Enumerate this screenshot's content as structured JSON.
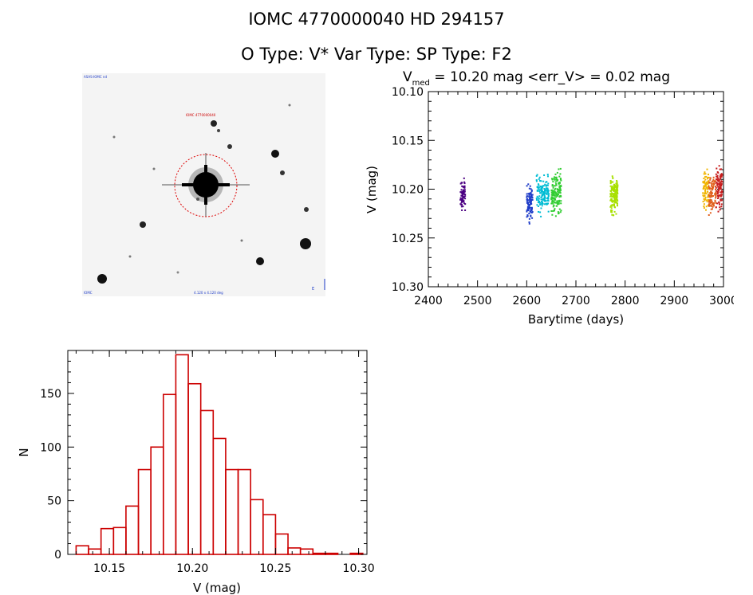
{
  "header": {
    "line1": "IOMC 4770000040    HD 294157",
    "line2": "O Type: V*  Var Type:    SP Type: F2"
  },
  "image_panel": {
    "label_top_left": "ASAS-IOMC nd",
    "label_target": "IOMC 4770000040",
    "label_bottom_left": "IOMC",
    "label_bottom_center": "4.120 x 4.120 deg",
    "label_bottom_right": "E"
  },
  "chart_data": [
    {
      "type": "scatter",
      "title_parts": {
        "v": "V",
        "sub": "med",
        "rest": " = 10.20 mag <err_V> = 0.02 mag"
      },
      "xlabel": "Barytime (days)",
      "ylabel": "V (mag)",
      "xlim": [
        2400,
        3000
      ],
      "ylim": [
        10.1,
        10.3
      ],
      "y_inverted": true,
      "xticks": [
        2400,
        2500,
        2600,
        2700,
        2800,
        2900,
        3000
      ],
      "yticks": [
        "10.10",
        "10.15",
        "10.20",
        "10.25",
        "10.30"
      ],
      "series": [
        {
          "color": "#4b0082",
          "x_range": [
            2465,
            2475
          ],
          "y_center": 10.205,
          "y_spread": 0.025,
          "n": 70
        },
        {
          "color": "#1e3cc8",
          "x_range": [
            2600,
            2612
          ],
          "y_center": 10.215,
          "y_spread": 0.03,
          "n": 90
        },
        {
          "color": "#00bcd4",
          "x_range": [
            2620,
            2645
          ],
          "y_center": 10.205,
          "y_spread": 0.03,
          "n": 140
        },
        {
          "color": "#32cd32",
          "x_range": [
            2650,
            2670
          ],
          "y_center": 10.205,
          "y_spread": 0.035,
          "n": 160
        },
        {
          "color": "#a8e000",
          "x_range": [
            2770,
            2785
          ],
          "y_center": 10.205,
          "y_spread": 0.03,
          "n": 170
        },
        {
          "color": "#f0b400",
          "x_range": [
            2958,
            2970
          ],
          "y_center": 10.2,
          "y_spread": 0.03,
          "n": 80
        },
        {
          "color": "#e0601c",
          "x_range": [
            2970,
            2985
          ],
          "y_center": 10.205,
          "y_spread": 0.03,
          "n": 90
        },
        {
          "color": "#c81e1e",
          "x_range": [
            2985,
            2998
          ],
          "y_center": 10.2,
          "y_spread": 0.035,
          "n": 100
        }
      ]
    },
    {
      "type": "bar",
      "title": "",
      "xlabel": "V (mag)",
      "ylabel": "N",
      "xlim": [
        10.125,
        10.305
      ],
      "ylim": [
        0,
        190
      ],
      "xticks": [
        "10.15",
        "10.20",
        "10.25",
        "10.30"
      ],
      "yticks": [
        "0",
        "50",
        "100",
        "150"
      ],
      "bin_width": 0.0075,
      "bin_start": 10.13,
      "values": [
        8,
        5,
        24,
        25,
        45,
        79,
        100,
        149,
        186,
        159,
        134,
        108,
        79,
        79,
        51,
        37,
        19,
        6,
        5,
        1,
        1,
        0,
        1
      ],
      "color": "#cc0000"
    }
  ]
}
